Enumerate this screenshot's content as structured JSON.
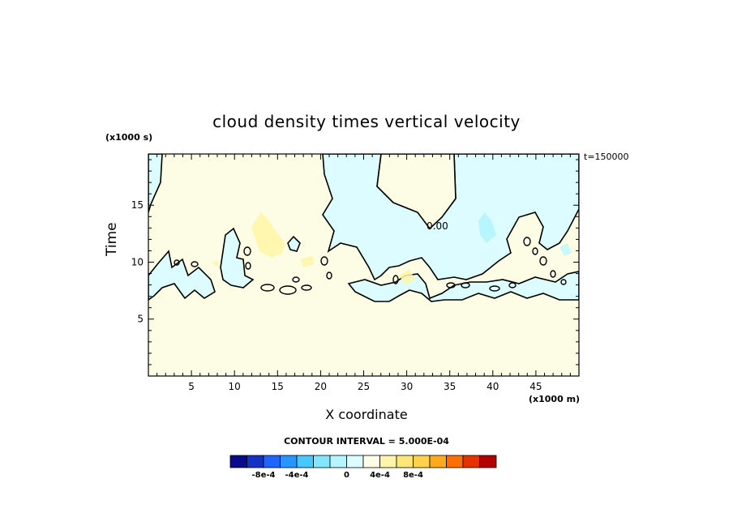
{
  "chart_data": {
    "type": "heatmap",
    "title": "cloud density times vertical velocity",
    "xlabel": "X coordinate",
    "ylabel": "Time",
    "x_units": "(x1000 m)",
    "y_units": "(x1000 s)",
    "time_label": "t=150000",
    "xlim": [
      0,
      50
    ],
    "ylim": [
      0,
      19.5
    ],
    "xticks": [
      5,
      10,
      15,
      20,
      25,
      30,
      35,
      40,
      45
    ],
    "yticks": [
      5,
      10,
      15
    ],
    "contour_interval_text": "CONTOUR INTERVAL = 5.000E-04",
    "zero_contour_label": "0.00",
    "colorbar": {
      "colors": [
        "#0a0a8c",
        "#1432c8",
        "#1e64ff",
        "#2896ff",
        "#46c8ff",
        "#82e6ff",
        "#b4f5ff",
        "#dcfcff",
        "#fffde6",
        "#fff5aa",
        "#ffe678",
        "#ffd24b",
        "#ffaa1e",
        "#ff6e00",
        "#e63200",
        "#b40000"
      ],
      "labels": [
        {
          "text": "-8e-4",
          "index": 1
        },
        {
          "text": "-4e-4",
          "index": 3
        },
        {
          "text": "0",
          "index": 6
        },
        {
          "text": "4e-4",
          "index": 8
        },
        {
          "text": "8e-4",
          "index": 10
        }
      ]
    },
    "background_value_color": "#fdfde6",
    "field_description_colors": {
      "negative_small": "#dcfcff",
      "negative_mid": "#b4f5ff",
      "positive_small": "#fff5aa"
    }
  }
}
